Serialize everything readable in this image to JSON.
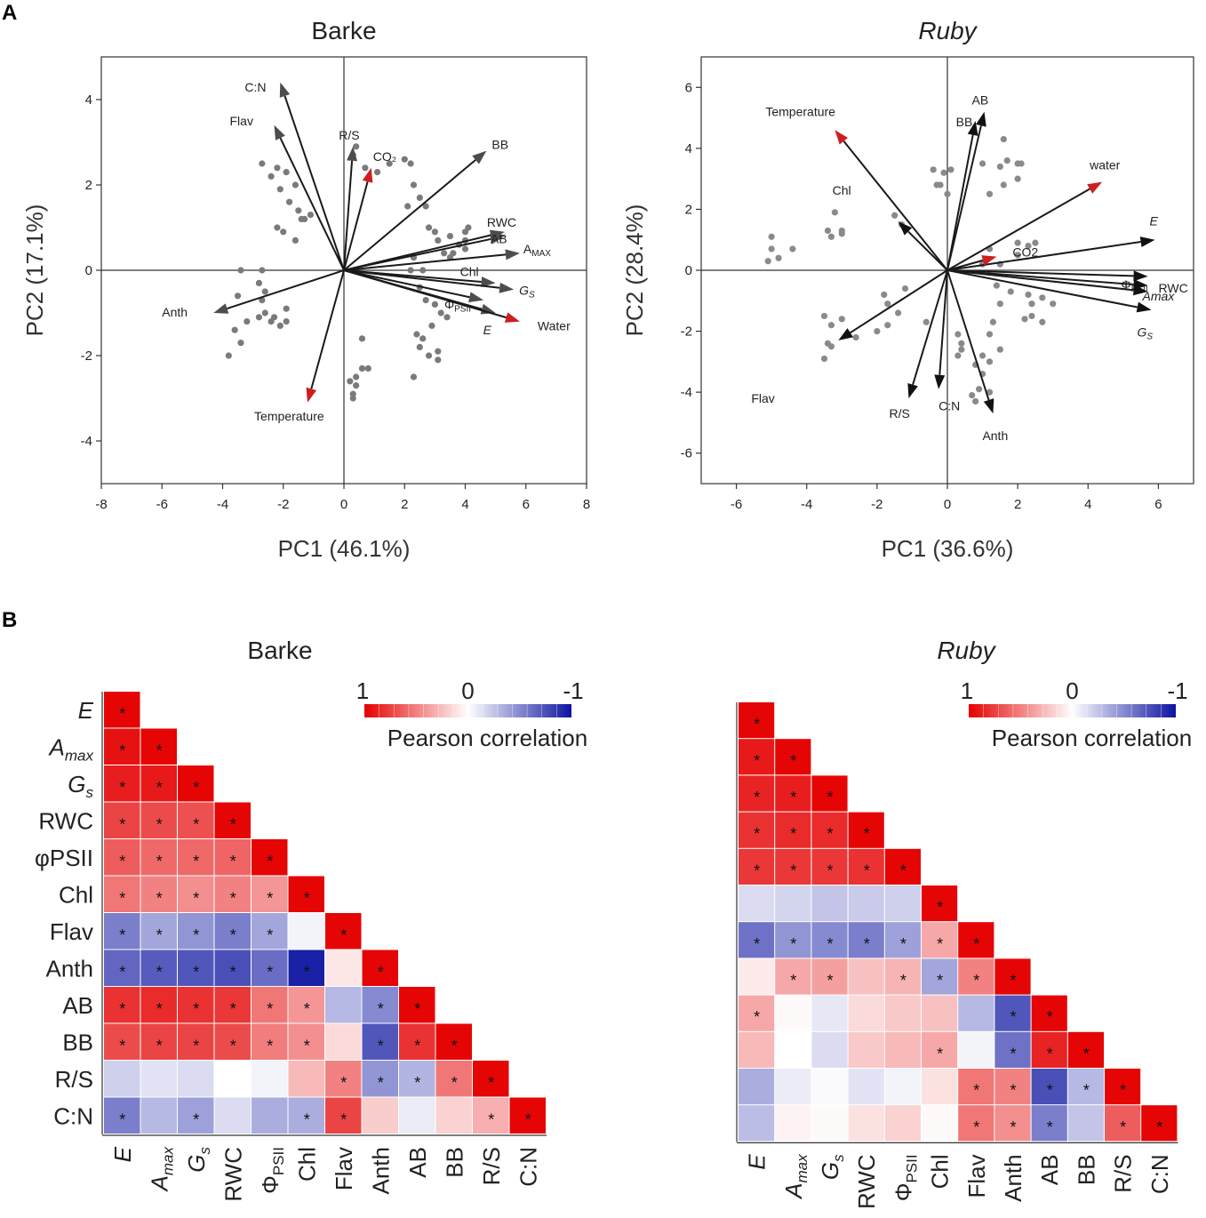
{
  "panel_labels": [
    "A",
    "B"
  ],
  "chart_data": [
    {
      "type": "scatter",
      "subtype": "pca-biplot",
      "title": "Barke",
      "title_italic": false,
      "xlabel": "PC1 (46.1%)",
      "ylabel": "PC2 (17.1%)",
      "xlim": [
        -8,
        8
      ],
      "ylim": [
        -5,
        5
      ],
      "xticks": [
        -8,
        -6,
        -4,
        -2,
        0,
        2,
        4,
        6,
        8
      ],
      "yticks": [
        -4,
        -2,
        0,
        2,
        4
      ],
      "scores": [
        [
          -3.5,
          -0.6
        ],
        [
          -3.6,
          -1.4
        ],
        [
          -3.4,
          -1.7
        ],
        [
          -3.8,
          -2.0
        ],
        [
          -3.2,
          -1.2
        ],
        [
          -2.8,
          -1.1
        ],
        [
          -2.6,
          -1.0
        ],
        [
          -2.4,
          -1.2
        ],
        [
          -2.3,
          -1.1
        ],
        [
          -2.1,
          -1.3
        ],
        [
          -1.9,
          -1.2
        ],
        [
          -1.9,
          -0.9
        ],
        [
          -2.7,
          -0.7
        ],
        [
          -2.6,
          -0.5
        ],
        [
          -2.8,
          -0.3
        ],
        [
          -2.7,
          0.0
        ],
        [
          -3.4,
          0.0
        ],
        [
          -2.7,
          2.5
        ],
        [
          -2.4,
          2.2
        ],
        [
          -2.2,
          2.4
        ],
        [
          -2.1,
          1.9
        ],
        [
          -1.9,
          2.3
        ],
        [
          -1.8,
          1.6
        ],
        [
          -1.6,
          2.0
        ],
        [
          -1.5,
          1.4
        ],
        [
          -1.4,
          1.2
        ],
        [
          -1.1,
          1.3
        ],
        [
          -1.3,
          1.2
        ],
        [
          -2.2,
          1.0
        ],
        [
          -1.6,
          0.7
        ],
        [
          -2.0,
          0.9
        ],
        [
          0.3,
          2.7
        ],
        [
          0.4,
          2.9
        ],
        [
          0.7,
          2.4
        ],
        [
          1.1,
          2.3
        ],
        [
          1.5,
          2.5
        ],
        [
          2.0,
          2.6
        ],
        [
          2.2,
          2.5
        ],
        [
          2.3,
          2.0
        ],
        [
          2.1,
          1.5
        ],
        [
          2.5,
          1.7
        ],
        [
          2.7,
          1.5
        ],
        [
          2.8,
          1.0
        ],
        [
          3.0,
          0.9
        ],
        [
          3.1,
          0.7
        ],
        [
          3.3,
          0.4
        ],
        [
          3.5,
          0.3
        ],
        [
          3.6,
          0.4
        ],
        [
          4.0,
          0.9
        ],
        [
          4.0,
          0.5
        ],
        [
          3.8,
          0.6
        ],
        [
          3.5,
          0.8
        ],
        [
          4.1,
          1.0
        ],
        [
          4.0,
          0.7
        ],
        [
          2.3,
          0.3
        ],
        [
          2.2,
          0.0
        ],
        [
          2.6,
          0.0
        ],
        [
          2.5,
          -0.4
        ],
        [
          2.7,
          -0.7
        ],
        [
          3.0,
          -0.8
        ],
        [
          3.2,
          -1.0
        ],
        [
          3.4,
          -1.1
        ],
        [
          2.9,
          -1.3
        ],
        [
          2.4,
          -1.5
        ],
        [
          2.6,
          -1.6
        ],
        [
          2.5,
          -1.8
        ],
        [
          3.1,
          -1.9
        ],
        [
          3.1,
          -2.1
        ],
        [
          2.8,
          -2.0
        ],
        [
          2.3,
          -2.5
        ],
        [
          0.6,
          -1.6
        ],
        [
          0.6,
          -2.3
        ],
        [
          0.8,
          -2.3
        ],
        [
          0.4,
          -2.5
        ],
        [
          0.4,
          -2.7
        ],
        [
          0.3,
          -2.9
        ],
        [
          0.3,
          -3.0
        ],
        [
          0.2,
          -2.6
        ]
      ],
      "vectors": [
        {
          "label": "C:N",
          "x": -2.1,
          "y": 4.4,
          "color": "#4d4d4d"
        },
        {
          "label": "Flav",
          "x": -2.3,
          "y": 3.4,
          "color": "#4d4d4d"
        },
        {
          "label": "R/S",
          "x": 0.3,
          "y": 2.9,
          "color": "#4d4d4d"
        },
        {
          "label": "CO₂",
          "x": 0.9,
          "y": 2.4,
          "color": "#cc1f1f"
        },
        {
          "label": "BB",
          "x": 4.7,
          "y": 2.8,
          "color": "#4d4d4d"
        },
        {
          "label": "RWC",
          "x": 5.3,
          "y": 0.9,
          "color": "#4d4d4d"
        },
        {
          "label": "AB",
          "x": 5.3,
          "y": 0.8,
          "color": "#4d4d4d"
        },
        {
          "label": "AMAX",
          "x": 5.8,
          "y": 0.4,
          "color": "#4d4d4d"
        },
        {
          "label": "Chl",
          "x": 5.0,
          "y": -0.3,
          "color": "#4d4d4d"
        },
        {
          "label": "GS",
          "x": 5.6,
          "y": -0.45,
          "color": "#4d4d4d"
        },
        {
          "label": "ΦPSII",
          "x": 4.6,
          "y": -0.7,
          "color": "#4d4d4d"
        },
        {
          "label": "E",
          "x": 5.0,
          "y": -1.0,
          "color": "#4d4d4d"
        },
        {
          "label": "Water",
          "x": 5.8,
          "y": -1.2,
          "color": "#cc1f1f"
        },
        {
          "label": "Anth",
          "x": -4.3,
          "y": -1.0,
          "color": "#4d4d4d"
        },
        {
          "label": "Temperature",
          "x": -1.2,
          "y": -3.1,
          "color": "#cc1f1f"
        }
      ]
    },
    {
      "type": "scatter",
      "subtype": "pca-biplot",
      "title": "Ruby",
      "title_italic": true,
      "xlabel": "PC1 (36.6%)",
      "ylabel": "PC2 (28.4%)",
      "xlim": [
        -7,
        7
      ],
      "ylim": [
        -7,
        7
      ],
      "xticks": [
        -6,
        -4,
        -2,
        0,
        2,
        4,
        6
      ],
      "yticks": [
        -6,
        -4,
        -2,
        0,
        2,
        4,
        6
      ],
      "scores": [
        [
          -5.0,
          1.1
        ],
        [
          -5.0,
          0.7
        ],
        [
          -5.1,
          0.3
        ],
        [
          -4.8,
          0.4
        ],
        [
          -4.4,
          0.7
        ],
        [
          -3.4,
          1.3
        ],
        [
          -3.3,
          1.1
        ],
        [
          -3.2,
          1.9
        ],
        [
          -3.0,
          1.3
        ],
        [
          -3.0,
          1.2
        ],
        [
          -1.5,
          1.8
        ],
        [
          -1.3,
          1.5
        ],
        [
          -0.4,
          3.3
        ],
        [
          -0.3,
          2.8
        ],
        [
          -0.1,
          3.2
        ],
        [
          0.1,
          3.3
        ],
        [
          0.0,
          2.5
        ],
        [
          -0.2,
          2.8
        ],
        [
          -3.5,
          -1.5
        ],
        [
          -3.3,
          -1.8
        ],
        [
          -3.0,
          -1.6
        ],
        [
          -2.6,
          -2.2
        ],
        [
          -3.3,
          -2.5
        ],
        [
          -3.4,
          -2.4
        ],
        [
          -3.5,
          -2.9
        ],
        [
          -2.0,
          -2.0
        ],
        [
          -1.7,
          -1.8
        ],
        [
          -1.4,
          -1.4
        ],
        [
          -1.7,
          -1.1
        ],
        [
          -1.8,
          -0.8
        ],
        [
          -1.2,
          -0.6
        ],
        [
          -0.6,
          -1.7
        ],
        [
          1.0,
          3.5
        ],
        [
          1.2,
          2.5
        ],
        [
          1.5,
          3.4
        ],
        [
          1.7,
          3.6
        ],
        [
          1.6,
          4.3
        ],
        [
          2.0,
          3.5
        ],
        [
          1.6,
          2.8
        ],
        [
          2.1,
          3.5
        ],
        [
          2.0,
          3.0
        ],
        [
          2.0,
          0.9
        ],
        [
          2.5,
          0.9
        ],
        [
          2.0,
          0.5
        ],
        [
          2.3,
          0.8
        ],
        [
          1.2,
          0.7
        ],
        [
          1.5,
          0.2
        ],
        [
          1.0,
          0.2
        ],
        [
          1.4,
          -0.5
        ],
        [
          1.8,
          -0.7
        ],
        [
          2.3,
          -0.8
        ],
        [
          2.7,
          -0.9
        ],
        [
          2.4,
          -1.1
        ],
        [
          2.4,
          -1.5
        ],
        [
          2.2,
          -1.6
        ],
        [
          2.7,
          -1.7
        ],
        [
          3.0,
          -1.1
        ],
        [
          1.5,
          -1.1
        ],
        [
          1.3,
          -1.7
        ],
        [
          1.2,
          -2.1
        ],
        [
          0.3,
          -2.1
        ],
        [
          0.4,
          -2.4
        ],
        [
          0.3,
          -2.8
        ],
        [
          1.0,
          -2.8
        ],
        [
          0.8,
          -3.1
        ],
        [
          1.0,
          -3.4
        ],
        [
          0.9,
          -3.9
        ],
        [
          0.7,
          -4.1
        ],
        [
          0.8,
          -4.3
        ],
        [
          1.2,
          -4.0
        ],
        [
          0.4,
          -2.6
        ],
        [
          1.2,
          -3.0
        ],
        [
          1.5,
          -2.6
        ]
      ],
      "vectors": [
        {
          "label": "Temperature",
          "x": -3.2,
          "y": 4.6,
          "color": "#cc1f1f"
        },
        {
          "label": "AB",
          "x": 1.05,
          "y": 5.2,
          "color": "#111111"
        },
        {
          "label": "BB",
          "x": 0.8,
          "y": 4.9,
          "color": "#111111"
        },
        {
          "label": "water",
          "x": 4.4,
          "y": 2.9,
          "color": "#cc1f1f"
        },
        {
          "label": "E",
          "x": 5.9,
          "y": 1.0,
          "color": "#111111"
        },
        {
          "label": "CO2",
          "x": 1.4,
          "y": 0.45,
          "color": "#cc1f1f"
        },
        {
          "label": "ΦPSII",
          "x": 5.7,
          "y": -0.2,
          "color": "#111111"
        },
        {
          "label": "RWC",
          "x": 5.7,
          "y": -0.5,
          "color": "#111111"
        },
        {
          "label": "Amax",
          "x": 5.7,
          "y": -0.7,
          "color": "#111111"
        },
        {
          "label": "GS",
          "x": 5.8,
          "y": -1.3,
          "color": "#111111"
        },
        {
          "label": "Chl",
          "x": -1.4,
          "y": 1.6,
          "color": "#111111"
        },
        {
          "label": "Flav",
          "x": -3.1,
          "y": -2.3,
          "color": "#111111"
        },
        {
          "label": "R/S",
          "x": -1.1,
          "y": -4.2,
          "color": "#111111"
        },
        {
          "label": "C:N",
          "x": -0.25,
          "y": -3.9,
          "color": "#111111"
        },
        {
          "label": "Anth",
          "x": 1.3,
          "y": -4.7,
          "color": "#111111"
        }
      ]
    },
    {
      "type": "heatmap",
      "title": "Barke",
      "title_italic": false,
      "row_labels": [
        "E",
        "Amax",
        "Gs",
        "RWC",
        "φPSII",
        "Chl",
        "Flav",
        "Anth",
        "AB",
        "BB",
        "R/S",
        "C:N"
      ],
      "col_labels": [
        "E",
        "Amax",
        "Gs",
        "RWC",
        "ΦPSII",
        "Chl",
        "Flav",
        "Anth",
        "AB",
        "BB",
        "R/S",
        "C:N"
      ],
      "colorbar": {
        "label": "Pearson correlation",
        "ticks": [
          "1",
          "0",
          "-1"
        ]
      },
      "values": [
        [
          1
        ],
        [
          0.95,
          1
        ],
        [
          0.9,
          0.92,
          1
        ],
        [
          0.75,
          0.72,
          0.7,
          1
        ],
        [
          0.65,
          0.6,
          0.6,
          0.62,
          1
        ],
        [
          0.55,
          0.5,
          0.45,
          0.5,
          0.42,
          1
        ],
        [
          -0.55,
          -0.38,
          -0.45,
          -0.55,
          -0.38,
          -0.05,
          1
        ],
        [
          -0.65,
          -0.7,
          -0.72,
          -0.75,
          -0.62,
          -0.95,
          0.1,
          1
        ],
        [
          0.82,
          0.85,
          0.82,
          0.8,
          0.55,
          0.42,
          -0.3,
          -0.5,
          1
        ],
        [
          0.72,
          0.75,
          0.75,
          0.72,
          0.52,
          0.45,
          0.15,
          -0.72,
          0.82,
          1
        ],
        [
          -0.2,
          -0.12,
          -0.15,
          0.0,
          -0.05,
          0.28,
          0.5,
          -0.45,
          -0.32,
          0.55,
          1
        ],
        [
          -0.55,
          -0.3,
          -0.4,
          -0.15,
          -0.35,
          -0.35,
          0.75,
          0.2,
          -0.08,
          0.18,
          0.32,
          1
        ]
      ],
      "stars": [
        [
          1
        ],
        [
          1,
          1
        ],
        [
          1,
          1,
          1
        ],
        [
          1,
          1,
          1,
          1
        ],
        [
          1,
          1,
          1,
          1,
          1
        ],
        [
          1,
          1,
          1,
          1,
          1,
          1
        ],
        [
          1,
          1,
          1,
          1,
          1,
          0,
          1
        ],
        [
          1,
          1,
          1,
          1,
          1,
          1,
          0,
          1
        ],
        [
          1,
          1,
          1,
          1,
          1,
          1,
          0,
          1,
          1
        ],
        [
          1,
          1,
          1,
          1,
          1,
          1,
          0,
          1,
          1,
          1
        ],
        [
          0,
          0,
          0,
          0,
          0,
          0,
          1,
          1,
          1,
          1,
          1
        ],
        [
          1,
          0,
          1,
          0,
          0,
          1,
          1,
          0,
          0,
          0,
          1,
          1
        ]
      ]
    },
    {
      "type": "heatmap",
      "title": "Ruby",
      "title_italic": true,
      "row_labels": [],
      "col_labels": [
        "E",
        "Amax",
        "Gs",
        "RWC",
        "ΦPSII",
        "Chl",
        "Flav",
        "Anth",
        "AB",
        "BB",
        "R/S",
        "C:N"
      ],
      "colorbar": {
        "label": "Pearson correlation",
        "ticks": [
          "1",
          "0",
          "-1"
        ]
      },
      "values": [
        [
          1
        ],
        [
          0.92,
          1
        ],
        [
          0.88,
          0.9,
          1
        ],
        [
          0.82,
          0.85,
          0.85,
          1
        ],
        [
          0.8,
          0.8,
          0.8,
          0.82,
          1
        ],
        [
          -0.15,
          -0.18,
          -0.25,
          -0.22,
          -0.2,
          1
        ],
        [
          -0.6,
          -0.45,
          -0.5,
          -0.55,
          -0.4,
          0.35,
          1
        ],
        [
          0.08,
          0.35,
          0.38,
          0.25,
          0.3,
          -0.38,
          0.5,
          1
        ],
        [
          0.35,
          0.02,
          -0.1,
          0.15,
          0.22,
          0.25,
          -0.3,
          -0.72,
          1
        ],
        [
          0.28,
          0.0,
          -0.15,
          0.22,
          0.28,
          0.35,
          -0.05,
          -0.6,
          0.88,
          1
        ],
        [
          -0.35,
          -0.08,
          -0.02,
          -0.12,
          -0.05,
          0.12,
          0.55,
          0.5,
          -0.75,
          -0.3,
          1
        ],
        [
          -0.28,
          0.05,
          0.02,
          0.12,
          0.18,
          0.02,
          0.55,
          0.45,
          -0.55,
          -0.25,
          0.65,
          1
        ]
      ],
      "stars": [
        [
          1
        ],
        [
          1,
          1
        ],
        [
          1,
          1,
          1
        ],
        [
          1,
          1,
          1,
          1
        ],
        [
          1,
          1,
          1,
          1,
          1
        ],
        [
          0,
          0,
          0,
          0,
          0,
          1
        ],
        [
          1,
          1,
          1,
          1,
          1,
          1,
          1
        ],
        [
          0,
          1,
          1,
          0,
          1,
          1,
          1,
          1
        ],
        [
          1,
          0,
          0,
          0,
          0,
          0,
          0,
          1,
          1
        ],
        [
          0,
          0,
          0,
          0,
          0,
          1,
          0,
          1,
          1,
          1
        ],
        [
          0,
          0,
          0,
          0,
          0,
          0,
          1,
          1,
          1,
          1,
          1
        ],
        [
          0,
          0,
          0,
          0,
          0,
          0,
          1,
          1,
          1,
          0,
          1,
          1
        ]
      ]
    }
  ]
}
